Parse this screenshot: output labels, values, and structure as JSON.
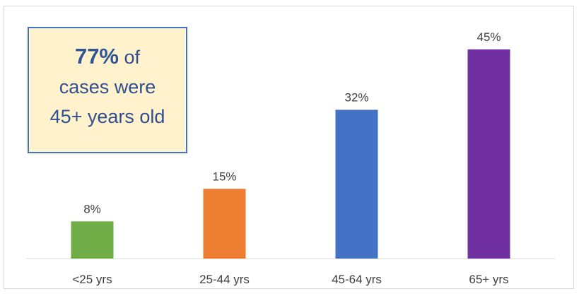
{
  "chart_data": {
    "type": "bar",
    "categories": [
      "<25 yrs",
      "25-44 yrs",
      "45-64 yrs",
      "65+ yrs"
    ],
    "values": [
      8,
      15,
      32,
      45
    ],
    "value_labels": [
      "8%",
      "15%",
      "32%",
      "45%"
    ],
    "colors": [
      "#70ad47",
      "#ed7d31",
      "#4472c4",
      "#7030a0"
    ],
    "ylim": [
      0,
      50
    ],
    "grid": false,
    "legend": "none",
    "title": "",
    "xlabel": "",
    "ylabel": ""
  },
  "callout": {
    "highlight": "77%",
    "text_after_highlight": " of",
    "line2": "cases were",
    "line3": "45+ years old"
  }
}
